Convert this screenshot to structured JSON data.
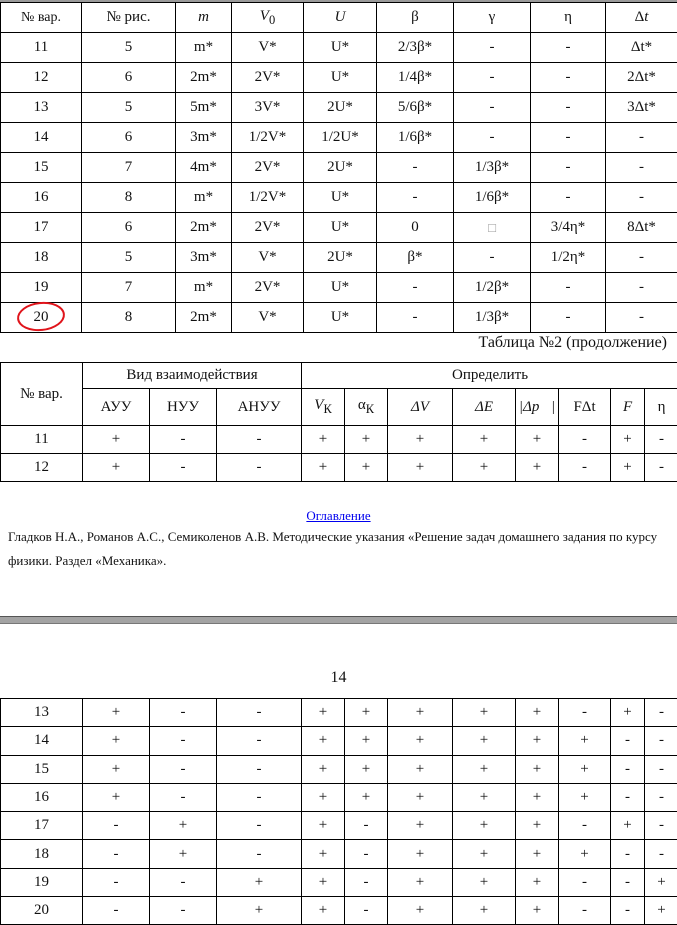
{
  "table1": {
    "headers": [
      "№ вар.",
      "№ рис.",
      "m",
      "V0",
      "U",
      "β",
      "γ",
      "η",
      "Δt"
    ],
    "rows": [
      [
        "11",
        "5",
        "m*",
        "V*",
        "U*",
        "2/3β*",
        "-",
        "-",
        "Δt*"
      ],
      [
        "12",
        "6",
        "2m*",
        "2V*",
        "U*",
        "1/4β*",
        "-",
        "-",
        "2Δt*"
      ],
      [
        "13",
        "5",
        "5m*",
        "3V*",
        "2U*",
        "5/6β*",
        "-",
        "-",
        "3Δt*"
      ],
      [
        "14",
        "6",
        "3m*",
        "1/2V*",
        "1/2U*",
        "1/6β*",
        "-",
        "-",
        "-"
      ],
      [
        "15",
        "7",
        "4m*",
        "2V*",
        "2U*",
        "-",
        "1/3β*",
        "-",
        "-"
      ],
      [
        "16",
        "8",
        "m*",
        "1/2V*",
        "U*",
        "-",
        "1/6β*",
        "-",
        "-"
      ],
      [
        "17",
        "6",
        "2m*",
        "2V*",
        "U*",
        "0",
        "□",
        "3/4η*",
        "8Δt*"
      ],
      [
        "18",
        "5",
        "3m*",
        "V*",
        "2U*",
        "β*",
        "-",
        "1/2η*",
        "-"
      ],
      [
        "19",
        "7",
        "m*",
        "2V*",
        "U*",
        "-",
        "1/2β*",
        "-",
        "-"
      ],
      [
        "20",
        "8",
        "2m*",
        "V*",
        "U*",
        "-",
        "1/3β*",
        "-",
        "-"
      ]
    ],
    "highlighted_variant": "20",
    "highlight_color": "#e0141b"
  },
  "table2": {
    "caption": "Таблица №2 (продолжение)",
    "var_header": "№ вар.",
    "group_interaction": "Вид взаимодействия",
    "group_determine": "Определить",
    "headers": [
      "АУУ",
      "НУУ",
      "АНУУ",
      "V",
      "К",
      "α",
      "К",
      "ΔV",
      "ΔE",
      "|Δp⃗|",
      "FΔt",
      "F",
      "η"
    ],
    "rows": [
      [
        "11",
        "+",
        "-",
        "-",
        "+",
        "+",
        "+",
        "+",
        "+",
        "-",
        "+",
        "-"
      ],
      [
        "12",
        "+",
        "-",
        "-",
        "+",
        "+",
        "+",
        "+",
        "+",
        "-",
        "+",
        "-"
      ]
    ]
  },
  "footer": {
    "toc_link": "Оглавление",
    "citation": "Гладков Н.А., Романов А.С., Семиколенов А.В. Методические указания «Решение задач домашнего задания по курсу физики. Раздел «Механика».",
    "page_number": "14",
    "link_color": "#0000ee"
  },
  "table3": {
    "rows": [
      [
        "13",
        "+",
        "-",
        "-",
        "+",
        "+",
        "+",
        "+",
        "+",
        "-",
        "+",
        "-"
      ],
      [
        "14",
        "+",
        "-",
        "-",
        "+",
        "+",
        "+",
        "+",
        "+",
        "+",
        "-",
        "-"
      ],
      [
        "15",
        "+",
        "-",
        "-",
        "+",
        "+",
        "+",
        "+",
        "+",
        "+",
        "-",
        "-"
      ],
      [
        "16",
        "+",
        "-",
        "-",
        "+",
        "+",
        "+",
        "+",
        "+",
        "+",
        "-",
        "-"
      ],
      [
        "17",
        "-",
        "+",
        "-",
        "+",
        "-",
        "+",
        "+",
        "+",
        "-",
        "+",
        "-"
      ],
      [
        "18",
        "-",
        "+",
        "-",
        "+",
        "-",
        "+",
        "+",
        "+",
        "+",
        "-",
        "-"
      ],
      [
        "19",
        "-",
        "-",
        "+",
        "+",
        "-",
        "+",
        "+",
        "+",
        "-",
        "-",
        "+"
      ],
      [
        "20",
        "-",
        "-",
        "+",
        "+",
        "-",
        "+",
        "+",
        "+",
        "-",
        "-",
        "+"
      ]
    ]
  }
}
